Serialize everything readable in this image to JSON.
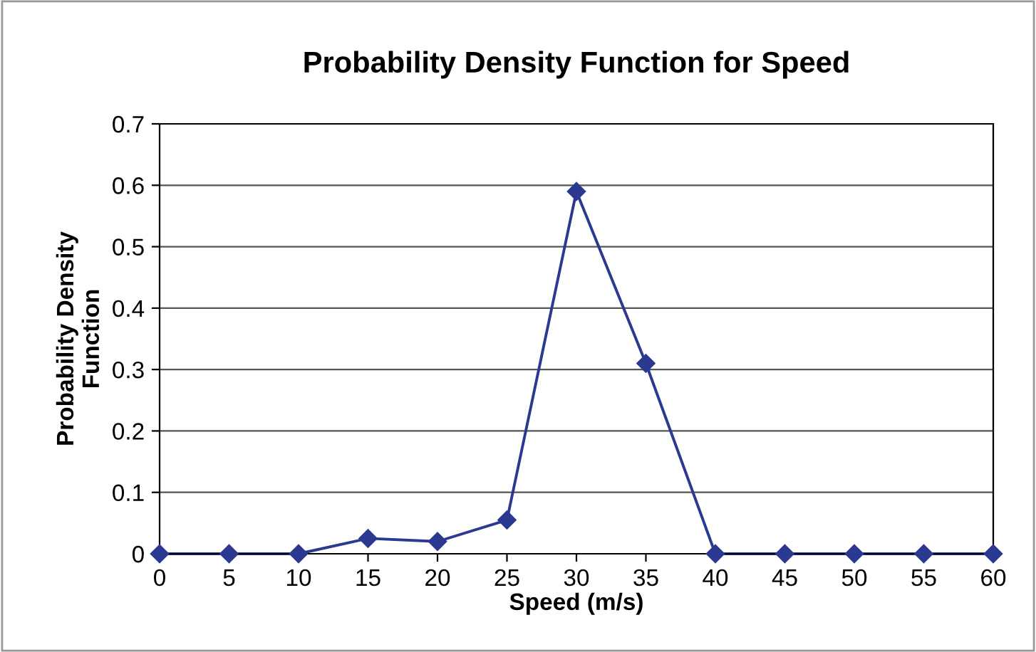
{
  "chart_data": {
    "type": "line",
    "title": "Probability Density Function for Speed",
    "xlabel": "Speed (m/s)",
    "ylabel": "Probability Density\nFunction",
    "x": [
      0,
      5,
      10,
      15,
      20,
      25,
      30,
      35,
      40,
      45,
      50,
      55,
      60
    ],
    "series": [
      {
        "color": "#2b3990",
        "values": [
          0,
          0,
          0,
          0.025,
          0.02,
          0.055,
          0.59,
          0.31,
          0,
          0,
          0,
          0,
          0
        ]
      }
    ],
    "xlim": [
      0,
      60
    ],
    "xticks": [
      0,
      5,
      10,
      15,
      20,
      25,
      30,
      35,
      40,
      45,
      50,
      55,
      60
    ],
    "ylim": [
      0,
      0.7
    ],
    "yticks": [
      0,
      0.1,
      0.2,
      0.3,
      0.4,
      0.5,
      0.6,
      0.7
    ],
    "grid": "y",
    "marker": "diamond",
    "line_style": "solid"
  }
}
